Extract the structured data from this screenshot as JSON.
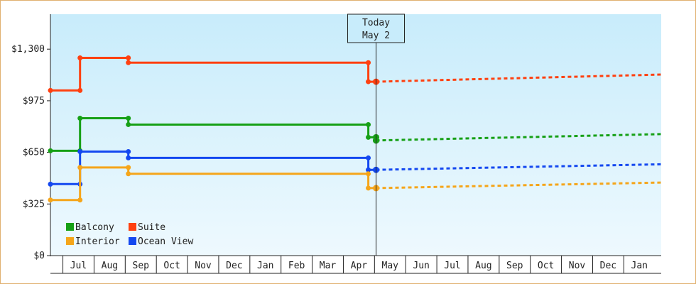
{
  "chart_data": {
    "type": "line",
    "step": true,
    "y_axis": {
      "ticks": [
        {
          "value": 0,
          "label": "$0"
        },
        {
          "value": 325,
          "label": "$325"
        },
        {
          "value": 650,
          "label": "$650"
        },
        {
          "value": 975,
          "label": "$975"
        },
        {
          "value": 1300,
          "label": "$1,300"
        }
      ],
      "range": [
        0,
        1520
      ]
    },
    "x_axis": {
      "months": [
        "Jul",
        "Aug",
        "Sep",
        "Oct",
        "Nov",
        "Dec",
        "Jan",
        "Feb",
        "Mar",
        "Apr",
        "May",
        "Jun",
        "Jul",
        "Aug",
        "Sep",
        "Oct",
        "Nov",
        "Dec",
        "Jan"
      ],
      "range": [
        0,
        19.6
      ],
      "first_month_offset": 0.4
    },
    "today": {
      "line1": "Today",
      "line2": "May 2",
      "x": 10.45
    },
    "legend": [
      {
        "name": "Balcony",
        "color": "#16a016"
      },
      {
        "name": "Suite",
        "color": "#ff4010"
      },
      {
        "name": "Interior",
        "color": "#f5a51a"
      },
      {
        "name": "Ocean View",
        "color": "#1448f0"
      }
    ],
    "series": [
      {
        "name": "Suite",
        "color": "#ff4010",
        "history": [
          [
            0,
            1040
          ],
          [
            0.95,
            1040
          ],
          [
            0.95,
            1245
          ],
          [
            2.5,
            1245
          ],
          [
            2.5,
            1215
          ],
          [
            10.2,
            1215
          ],
          [
            10.2,
            1095
          ],
          [
            10.45,
            1095
          ]
        ],
        "forecast": [
          [
            10.45,
            1095
          ],
          [
            19.6,
            1140
          ]
        ]
      },
      {
        "name": "Balcony",
        "color": "#16a016",
        "history": [
          [
            0,
            660
          ],
          [
            0.95,
            660
          ],
          [
            0.95,
            865
          ],
          [
            2.5,
            865
          ],
          [
            2.5,
            825
          ],
          [
            10.2,
            825
          ],
          [
            10.2,
            745
          ],
          [
            10.45,
            745
          ],
          [
            10.45,
            725
          ]
        ],
        "forecast": [
          [
            10.45,
            725
          ],
          [
            19.6,
            765
          ]
        ]
      },
      {
        "name": "Ocean View",
        "color": "#1448f0",
        "history": [
          [
            0,
            450
          ],
          [
            0.95,
            450
          ],
          [
            0.95,
            655
          ],
          [
            2.5,
            655
          ],
          [
            2.5,
            615
          ],
          [
            10.2,
            615
          ],
          [
            10.2,
            540
          ],
          [
            10.45,
            540
          ]
        ],
        "forecast": [
          [
            10.45,
            540
          ],
          [
            19.6,
            575
          ]
        ]
      },
      {
        "name": "Interior",
        "color": "#f5a51a",
        "history": [
          [
            0,
            350
          ],
          [
            0.95,
            350
          ],
          [
            0.95,
            555
          ],
          [
            2.5,
            555
          ],
          [
            2.5,
            515
          ],
          [
            10.2,
            515
          ],
          [
            10.2,
            425
          ],
          [
            10.45,
            425
          ]
        ],
        "forecast": [
          [
            10.45,
            425
          ],
          [
            19.6,
            460
          ]
        ]
      }
    ]
  }
}
